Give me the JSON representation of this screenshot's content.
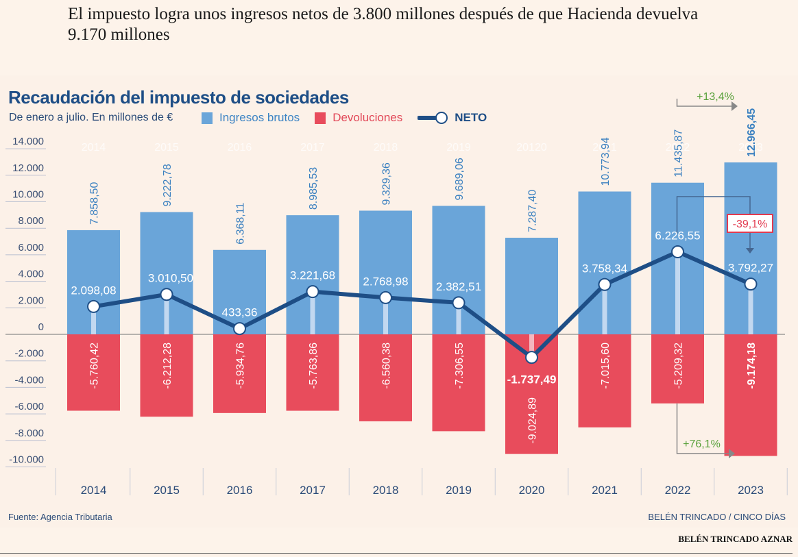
{
  "headline": "El impuesto logra unos ingresos netos de 3.800 millones después de que Hacienda devuelva 9.170 millones",
  "graphic": {
    "title": "Recaudación del impuesto de sociedades",
    "subtitle": "De enero a julio. En millones de €",
    "legend": [
      {
        "label": "Ingresos brutos",
        "icon": "blue-square-icon",
        "color": "#6aa5d9"
      },
      {
        "label": "Devoluciones",
        "icon": "red-square-icon",
        "color": "#e84c5c"
      },
      {
        "label": "NETO",
        "icon": "line-circle-icon",
        "color": "#1e4e86"
      }
    ],
    "source": "Fuente: Agencia Tributaria",
    "credit": "BELÉN TRINCADO / CINCO DÍAS"
  },
  "author": "BELÉN TRINCADO AZNAR",
  "chart_data": {
    "type": "bar",
    "title": "Recaudación del impuesto de sociedades",
    "subtitle": "De enero a julio. En millones de €",
    "xlabel": "",
    "ylabel": "",
    "ylim": [
      -10000,
      14000
    ],
    "yticks": [
      14000,
      12000,
      10000,
      8000,
      6000,
      4000,
      2000,
      0,
      -2000,
      -4000,
      -6000,
      -8000,
      -10000
    ],
    "ytick_labels": [
      "14.000",
      "12.000",
      "10.000",
      "8.000",
      "6.000",
      "4.000",
      "2.000",
      "0",
      "-2.000",
      "-4.000",
      "-6.000",
      "-8.000",
      "-10.000"
    ],
    "categories": [
      "2014",
      "2015",
      "2016",
      "2017",
      "2018",
      "2019",
      "2020",
      "2021",
      "2022",
      "2023"
    ],
    "ghost_labels": [
      "2014",
      "2015",
      "2016",
      "2017",
      "2018",
      "2019",
      "20120",
      "2021",
      "2022",
      "2023"
    ],
    "legend_position": "top",
    "series": [
      {
        "name": "Ingresos brutos",
        "type": "bar",
        "color": "#6aa5d9",
        "label_color": "#3a80c0",
        "values": [
          7858.5,
          9222.78,
          6368.11,
          8985.53,
          9329.36,
          9689.06,
          7287.4,
          10773.94,
          11435.87,
          12966.45
        ],
        "labels": [
          "7.858,50",
          "9.222,78",
          "6.368,11",
          "8.985,53",
          "9.329,36",
          "9.689,06",
          "7.287,40",
          "10.773,94",
          "11.435,87",
          "12.966,45"
        ],
        "bold_index": 9
      },
      {
        "name": "Devoluciones",
        "type": "bar",
        "color": "#e84c5c",
        "label_color": "#ffffff",
        "values": [
          -5760.42,
          -6212.28,
          -5934.76,
          -5763.86,
          -6560.38,
          -7306.55,
          -9024.89,
          -7015.6,
          -5209.32,
          -9174.18
        ],
        "labels": [
          "-5.760,42",
          "-6.212,28",
          "-5.934,76",
          "-5.763,86",
          "-6.560,38",
          "-7.306,55",
          "-9.024,89",
          "-7.015,60",
          "-5.209,32",
          "-9.174,18"
        ],
        "bold_index": 9
      },
      {
        "name": "NETO",
        "type": "line",
        "color": "#1e4e86",
        "label_color": "#ffffff",
        "values": [
          2098.08,
          3010.5,
          433.36,
          3221.68,
          2768.98,
          2382.51,
          -1737.49,
          3758.34,
          6226.55,
          3792.27
        ],
        "labels": [
          "2.098,08",
          "3.010,50",
          "433,36",
          "3.221,68",
          "2.768,98",
          "2.382,51",
          "-1.737,49",
          "3.758,34",
          "6.226,55",
          "3.792,27"
        ]
      }
    ],
    "annotations": [
      {
        "text": "+13,4%",
        "color": "#5aa13c",
        "from": "2022",
        "to": "2023",
        "series": "Ingresos brutos"
      },
      {
        "text": "-39,1%",
        "color": "#e23a4f",
        "from": "2022",
        "to": "2023",
        "series": "NETO",
        "boxed": true
      },
      {
        "text": "+76,1%",
        "color": "#5aa13c",
        "from": "2022",
        "to": "2023",
        "series": "Devoluciones"
      }
    ]
  }
}
